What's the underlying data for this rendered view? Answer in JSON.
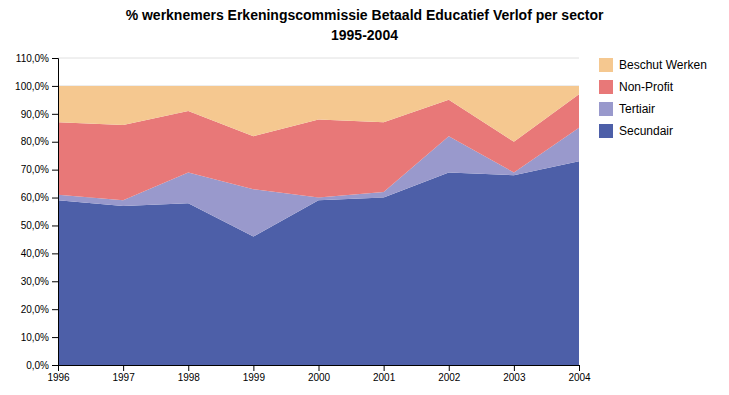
{
  "chart_data": {
    "type": "area",
    "stacked": true,
    "title": "% werknemers Erkeningscommissie Betaald Educatief Verlof per sector",
    "subtitle": "1995-2004",
    "x": [
      1996,
      1997,
      1998,
      1999,
      2000,
      2001,
      2002,
      2003,
      2004
    ],
    "series": [
      {
        "name": "Secundair",
        "color": "#4d5fa8",
        "values": [
          59,
          57,
          58,
          46,
          59,
          60,
          69,
          68,
          73
        ]
      },
      {
        "name": "Tertiair",
        "color": "#9999cc",
        "values": [
          2,
          2,
          11,
          17,
          1,
          2,
          13,
          1,
          12
        ]
      },
      {
        "name": "Non-Profit",
        "color": "#e87878",
        "values": [
          26,
          27,
          22,
          19,
          28,
          25,
          13,
          11,
          12
        ]
      },
      {
        "name": "Beschut Werken",
        "color": "#f5c890",
        "values": [
          13,
          14,
          9,
          18,
          12,
          13,
          5,
          20,
          3
        ]
      }
    ],
    "xlim": [
      1996,
      2004
    ],
    "xticks": [
      1996,
      1997,
      1998,
      1999,
      2000,
      2001,
      2002,
      2003,
      2004
    ],
    "ylim": [
      0,
      110
    ],
    "yticks": [
      {
        "value": 0,
        "label": "0,0%"
      },
      {
        "value": 10,
        "label": "10,0%"
      },
      {
        "value": 20,
        "label": "20,0%"
      },
      {
        "value": 30,
        "label": "30,0%"
      },
      {
        "value": 40,
        "label": "40,0%"
      },
      {
        "value": 50,
        "label": "50,0%"
      },
      {
        "value": 60,
        "label": "60,0%"
      },
      {
        "value": 70,
        "label": "70,0%"
      },
      {
        "value": 80,
        "label": "80,0%"
      },
      {
        "value": 90,
        "label": "90,0%"
      },
      {
        "value": 100,
        "label": "100,0%"
      },
      {
        "value": 110,
        "label": "110,0%"
      }
    ],
    "grid": true,
    "legend": "right"
  }
}
